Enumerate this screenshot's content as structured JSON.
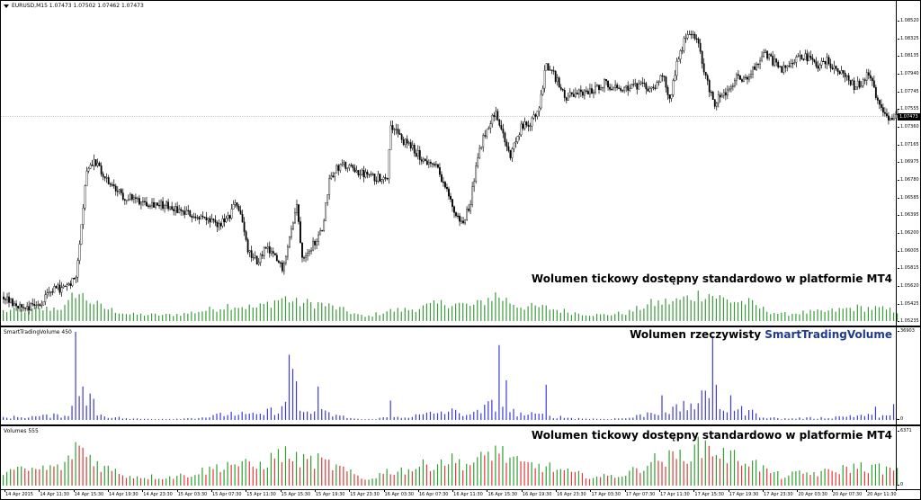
{
  "chart_window": {
    "title": "EURUSD,M15  1.07473  1.07502  1.07462  1.07473",
    "current_price_label": "1.07473",
    "overlay_text": "Wolumen tickowy dostępny standardowo w platformie MT4"
  },
  "indicator_smart": {
    "title": "SmartTradingVolume 450",
    "overlay_prefix": "Wolumen rzeczywisty ",
    "overlay_brand": "SmartTradingVolume",
    "scale_top": "36903",
    "scale_bottom": "0"
  },
  "indicator_volumes": {
    "title": "Volumes 555",
    "overlay_text": "Wolumen tickowy dostępny standardowo w platformie MT4",
    "scale_top": "6371",
    "scale_bottom": "0"
  },
  "colors": {
    "candle_up": "#ffffff",
    "candle_down": "#000000",
    "tick_volume": "#3a9a3a",
    "real_volume": "#3c3cd6",
    "volume_up": "#2f9f2f",
    "volume_down": "#e03a3a"
  },
  "price_scale": [
    "1.08520",
    "1.08325",
    "1.08135",
    "1.07940",
    "1.07745",
    "1.07555",
    "1.07360",
    "1.07165",
    "1.06975",
    "1.06780",
    "1.06585",
    "1.06395",
    "1.06200",
    "1.06005",
    "1.05815",
    "1.05620",
    "1.05425",
    "1.05235"
  ],
  "time_axis": [
    "14 Apr 2015",
    "14 Apr 11:30",
    "14 Apr 15:30",
    "14 Apr 19:30",
    "14 Apr 23:30",
    "15 Apr 03:30",
    "15 Apr 07:30",
    "15 Apr 11:30",
    "15 Apr 15:30",
    "15 Apr 19:30",
    "15 Apr 23:30",
    "16 Apr 03:30",
    "16 Apr 07:30",
    "16 Apr 11:30",
    "16 Apr 15:30",
    "16 Apr 19:30",
    "16 Apr 23:30",
    "17 Apr 03:30",
    "17 Apr 07:30",
    "17 Apr 11:30",
    "17 Apr 15:30",
    "17 Apr 19:30",
    "17 Apr 23:30",
    "20 Apr 03:30",
    "20 Apr 07:30",
    "20 Apr 11:30"
  ],
  "chart_data": {
    "type": "candlestick",
    "symbol": "EURUSD",
    "timeframe": "M15",
    "ylim": [
      1.05235,
      1.0865
    ],
    "price_path": [
      [
        0,
        1.055
      ],
      [
        10,
        1.0538
      ],
      [
        20,
        1.0542
      ],
      [
        28,
        1.0558
      ],
      [
        35,
        1.056
      ],
      [
        40,
        1.0575
      ],
      [
        43,
        1.063
      ],
      [
        46,
        1.069
      ],
      [
        50,
        1.07
      ],
      [
        55,
        1.0682
      ],
      [
        60,
        1.067
      ],
      [
        66,
        1.066
      ],
      [
        75,
        1.0655
      ],
      [
        90,
        1.065
      ],
      [
        100,
        1.0642
      ],
      [
        110,
        1.0636
      ],
      [
        118,
        1.0628
      ],
      [
        125,
        1.0636
      ],
      [
        128,
        1.0655
      ],
      [
        131,
        1.064
      ],
      [
        135,
        1.06
      ],
      [
        140,
        1.0588
      ],
      [
        145,
        1.0603
      ],
      [
        150,
        1.0592
      ],
      [
        154,
        1.0582
      ],
      [
        158,
        1.0615
      ],
      [
        162,
        1.065
      ],
      [
        165,
        1.0595
      ],
      [
        170,
        1.0605
      ],
      [
        176,
        1.0622
      ],
      [
        180,
        1.068
      ],
      [
        186,
        1.0695
      ],
      [
        195,
        1.0687
      ],
      [
        205,
        1.068
      ],
      [
        212,
        1.0682
      ],
      [
        214,
        1.074
      ],
      [
        220,
        1.0722
      ],
      [
        226,
        1.0712
      ],
      [
        232,
        1.07
      ],
      [
        240,
        1.069
      ],
      [
        246,
        1.066
      ],
      [
        250,
        1.0638
      ],
      [
        254,
        1.063
      ],
      [
        258,
        1.0655
      ],
      [
        262,
        1.0705
      ],
      [
        266,
        1.073
      ],
      [
        272,
        1.0755
      ],
      [
        276,
        1.0725
      ],
      [
        280,
        1.0705
      ],
      [
        286,
        1.0735
      ],
      [
        292,
        1.0742
      ],
      [
        296,
        1.076
      ],
      [
        300,
        1.0805
      ],
      [
        305,
        1.079
      ],
      [
        310,
        1.0768
      ],
      [
        316,
        1.0772
      ],
      [
        325,
        1.0775
      ],
      [
        332,
        1.0785
      ],
      [
        338,
        1.0778
      ],
      [
        345,
        1.078
      ],
      [
        352,
        1.078
      ],
      [
        358,
        1.0778
      ],
      [
        365,
        1.0792
      ],
      [
        368,
        1.0765
      ],
      [
        372,
        1.0805
      ],
      [
        376,
        1.083
      ],
      [
        380,
        1.084
      ],
      [
        384,
        1.0825
      ],
      [
        388,
        1.079
      ],
      [
        393,
        1.076
      ],
      [
        396,
        1.0772
      ],
      [
        400,
        1.0772
      ],
      [
        405,
        1.079
      ],
      [
        410,
        1.0788
      ],
      [
        415,
        1.08
      ],
      [
        420,
        1.0818
      ],
      [
        425,
        1.0808
      ],
      [
        430,
        1.0798
      ],
      [
        435,
        1.0808
      ],
      [
        440,
        1.0815
      ],
      [
        445,
        1.081
      ],
      [
        450,
        1.0803
      ],
      [
        455,
        1.0808
      ],
      [
        460,
        1.08
      ],
      [
        465,
        1.0792
      ],
      [
        470,
        1.078
      ],
      [
        474,
        1.0785
      ],
      [
        478,
        1.0795
      ],
      [
        482,
        1.077
      ],
      [
        486,
        1.0755
      ],
      [
        490,
        1.0745
      ],
      [
        494,
        1.0747
      ]
    ],
    "tick_volume_profile": [
      [
        0,
        0.3
      ],
      [
        20,
        0.35
      ],
      [
        35,
        0.42
      ],
      [
        40,
        0.9
      ],
      [
        45,
        0.7
      ],
      [
        55,
        0.4
      ],
      [
        70,
        0.2
      ],
      [
        90,
        0.18
      ],
      [
        100,
        0.22
      ],
      [
        115,
        0.35
      ],
      [
        125,
        0.48
      ],
      [
        140,
        0.4
      ],
      [
        155,
        0.7
      ],
      [
        162,
        0.55
      ],
      [
        175,
        0.52
      ],
      [
        185,
        0.38
      ],
      [
        200,
        0.12
      ],
      [
        212,
        0.3
      ],
      [
        225,
        0.35
      ],
      [
        245,
        0.55
      ],
      [
        260,
        0.45
      ],
      [
        272,
        0.78
      ],
      [
        285,
        0.45
      ],
      [
        300,
        0.4
      ],
      [
        315,
        0.25
      ],
      [
        330,
        0.18
      ],
      [
        345,
        0.25
      ],
      [
        358,
        0.52
      ],
      [
        372,
        0.6
      ],
      [
        388,
        0.85
      ],
      [
        400,
        0.62
      ],
      [
        412,
        0.55
      ],
      [
        420,
        0.35
      ],
      [
        430,
        0.2
      ],
      [
        440,
        0.25
      ],
      [
        455,
        0.28
      ],
      [
        470,
        0.4
      ],
      [
        482,
        0.38
      ],
      [
        494,
        0.3
      ]
    ],
    "real_volume_spikes": [
      [
        40,
        1.0
      ],
      [
        41,
        0.62
      ],
      [
        45,
        0.38
      ],
      [
        48,
        0.3
      ],
      [
        50,
        0.24
      ],
      [
        158,
        0.74
      ],
      [
        160,
        0.58
      ],
      [
        162,
        0.44
      ],
      [
        175,
        0.38
      ],
      [
        215,
        0.22
      ],
      [
        275,
        0.85
      ],
      [
        278,
        0.45
      ],
      [
        300,
        0.4
      ],
      [
        365,
        0.28
      ],
      [
        392,
        0.95
      ],
      [
        395,
        0.4
      ],
      [
        402,
        0.28
      ],
      [
        483,
        0.15
      ],
      [
        492,
        0.18
      ]
    ]
  }
}
